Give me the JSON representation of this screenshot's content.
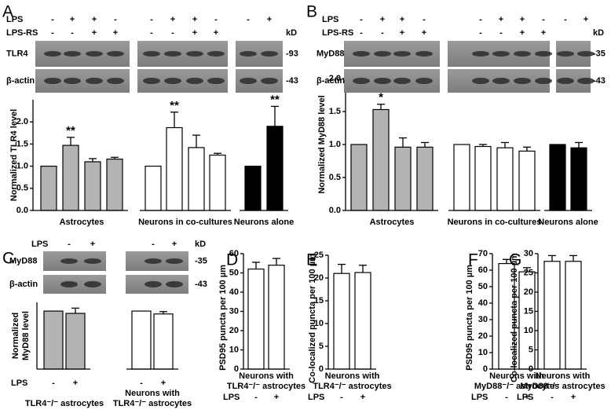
{
  "chart_data": [
    {
      "type": "bar",
      "panel": "A",
      "conditions": [
        {
          "name": "LPS",
          "signs": [
            "-",
            "+",
            "+",
            "-",
            "-",
            "+",
            "+",
            "-",
            "-",
            "+"
          ]
        },
        {
          "name": "LPS-RS",
          "signs": [
            "-",
            "-",
            "+",
            "+",
            "-",
            "-",
            "+",
            "+",
            null,
            null
          ]
        }
      ],
      "kd_label": "kD",
      "blots": [
        {
          "name": "TLR4",
          "kd": "-93"
        },
        {
          "name": "β-actin",
          "kd": "-43"
        }
      ],
      "ylabel": [
        "Normalized TLR4 level"
      ],
      "ylim": [
        0,
        2.5
      ],
      "yticks": [
        {
          "value": 0,
          "label": "0.0"
        },
        {
          "value": 0.5,
          "label": "0.5"
        },
        {
          "value": 1,
          "label": "1.0"
        },
        {
          "value": 1.5,
          "label": "1.5"
        },
        {
          "value": 2,
          "label": "2.0"
        }
      ],
      "groups": [
        {
          "label_lines": [
            "Astrocytes"
          ],
          "color": "#b3b3b3",
          "values": [
            1,
            1.47,
            1.1,
            1.16
          ],
          "errors": [
            0,
            0.18,
            0.07,
            0.04
          ],
          "value_annotations": [
            null,
            "**",
            null,
            null
          ]
        },
        {
          "label_lines": [
            "Neurons in co-cultures"
          ],
          "color": "#ffffff",
          "values": [
            1,
            1.87,
            1.42,
            1.25
          ],
          "errors": [
            0,
            0.35,
            0.28,
            0.04
          ],
          "value_annotations": [
            null,
            "**",
            null,
            null
          ]
        },
        {
          "label_lines": [
            "Neurons alone"
          ],
          "color": "#000000",
          "values": [
            1,
            1.9
          ],
          "errors": [
            0,
            0.45
          ],
          "value_annotations": [
            null,
            "**"
          ]
        }
      ]
    },
    {
      "type": "bar",
      "panel": "B",
      "conditions": [
        {
          "name": "LPS",
          "signs": [
            "-",
            "+",
            "+",
            "-",
            "-",
            "+",
            "+",
            "-",
            "-",
            "+"
          ]
        },
        {
          "name": "LPS-RS",
          "signs": [
            "-",
            "-",
            "+",
            "+",
            "-",
            "-",
            "+",
            "+",
            null,
            null
          ]
        }
      ],
      "kd_label": "kD",
      "blots": [
        {
          "name": "MyD88",
          "kd": "-35"
        },
        {
          "name": "β-actin",
          "kd": "-43"
        }
      ],
      "ylabel": [
        "Normalized MyD88 level"
      ],
      "ylim": [
        0,
        2
      ],
      "yticks": [
        {
          "value": 0,
          "label": "0.0"
        },
        {
          "value": 0.5,
          "label": "0.5"
        },
        {
          "value": 1,
          "label": "1.0"
        },
        {
          "value": 1.5,
          "label": "1.5"
        },
        {
          "value": 2,
          "label": "2.0"
        }
      ],
      "groups": [
        {
          "label_lines": [
            "Astrocytes"
          ],
          "color": "#b3b3b3",
          "values": [
            1,
            1.53,
            0.96,
            0.96
          ],
          "errors": [
            0,
            0.08,
            0.14,
            0.07
          ],
          "value_annotations": [
            null,
            "*",
            null,
            null
          ]
        },
        {
          "label_lines": [
            "Neurons in co-cultures"
          ],
          "color": "#ffffff",
          "values": [
            1,
            0.97,
            0.95,
            0.9
          ],
          "errors": [
            0,
            0.03,
            0.08,
            0.06
          ]
        },
        {
          "label_lines": [
            "Neurons alone"
          ],
          "color": "#000000",
          "values": [
            1,
            0.95
          ],
          "errors": [
            0,
            0.08
          ]
        }
      ]
    },
    {
      "type": "bar",
      "panel": "C",
      "conditions": [
        {
          "name": "LPS",
          "signs": [
            "-",
            "+",
            "-",
            "+"
          ]
        }
      ],
      "kd_label": "kD",
      "blots": [
        {
          "name": "MyD88",
          "kd": "-35"
        },
        {
          "name": "β-actin",
          "kd": "-43"
        }
      ],
      "ylabel": [
        "Normalized",
        "MyD88 level"
      ],
      "ylim": [
        0,
        1.15
      ],
      "x_conditions": {
        "name": "LPS",
        "signs": [
          "-",
          "+",
          "-",
          "+"
        ]
      },
      "groups": [
        {
          "label_lines": [
            "TLR4⁻/⁻ astrocytes"
          ],
          "color": "#b3b3b3",
          "values": [
            1,
            0.96
          ],
          "errors": [
            0,
            0.09
          ]
        },
        {
          "label_lines": [
            "Neurons with",
            "TLR4⁻/⁻ astrocytes"
          ],
          "color": "#ffffff",
          "values": [
            1,
            0.95
          ],
          "errors": [
            0,
            0.04
          ]
        }
      ]
    },
    {
      "type": "bar",
      "panel": "D",
      "ylabel": [
        "PSD95 puncta per 100 µm"
      ],
      "ylim": [
        0,
        60
      ],
      "yticks": [
        0,
        10,
        20,
        30,
        40,
        50,
        60
      ],
      "x_conditions": {
        "name": "LPS",
        "signs": [
          "-",
          "+"
        ]
      },
      "groups": [
        {
          "label_lines": [
            "Neurons with",
            "TLR4⁻/⁻ astrocytes"
          ],
          "color": "#ffffff",
          "values": [
            52,
            54
          ],
          "errors": [
            3.5,
            3.5
          ]
        }
      ]
    },
    {
      "type": "bar",
      "panel": "E",
      "ylabel": [
        "Co-localized puncta per 100 µm"
      ],
      "ylim": [
        0,
        25
      ],
      "yticks": [
        0,
        5,
        10,
        15,
        20,
        25
      ],
      "x_conditions": {
        "name": "LPS",
        "signs": [
          "-",
          "+"
        ]
      },
      "groups": [
        {
          "label_lines": [
            "Neurons with",
            "TLR4⁻/⁻ astrocytes"
          ],
          "color": "#ffffff",
          "values": [
            21,
            21.2
          ],
          "errors": [
            2,
            1.6
          ]
        }
      ]
    },
    {
      "type": "bar",
      "panel": "F",
      "ylabel": [
        "PSD95 puncta per 100 µm"
      ],
      "ylim": [
        0,
        70
      ],
      "yticks": [
        0,
        10,
        20,
        30,
        40,
        50,
        60,
        70
      ],
      "x_conditions": {
        "name": "LPS",
        "signs": [
          "-",
          "+"
        ]
      },
      "groups": [
        {
          "label_lines": [
            "Neurons with",
            "MyD88⁻/⁻ astrocytes"
          ],
          "color": "#ffffff",
          "values": [
            64,
            59
          ],
          "errors": [
            2.5,
            2.5
          ]
        }
      ]
    },
    {
      "type": "bar",
      "panel": "G",
      "ylabel": [
        "Co-localized puncta per 100 µm"
      ],
      "ylim": [
        0,
        30
      ],
      "yticks": [
        0,
        5,
        10,
        15,
        20,
        25,
        30
      ],
      "x_conditions": {
        "name": "LPS",
        "signs": [
          "-",
          "+"
        ]
      },
      "groups": [
        {
          "label_lines": [
            "Neurons with",
            "MyD88⁻/⁻ astrocytes"
          ],
          "color": "#ffffff",
          "values": [
            28,
            28
          ],
          "errors": [
            1.5,
            1.5
          ]
        }
      ]
    }
  ]
}
